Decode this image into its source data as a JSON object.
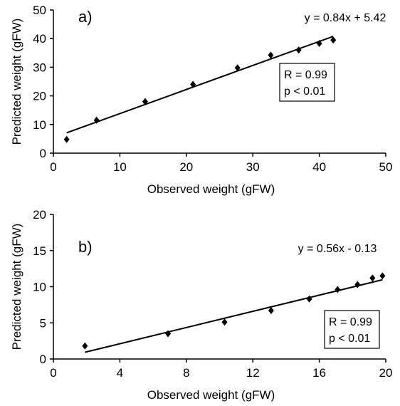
{
  "chart_data": [
    {
      "type": "scatter",
      "panel_label": "a)",
      "xlabel": "Observed weight (gFW)",
      "ylabel": "Predicted weight (gFW)",
      "xlim": [
        0,
        50
      ],
      "ylim": [
        0,
        50
      ],
      "xticks": [
        0,
        10,
        20,
        30,
        40,
        50
      ],
      "yticks": [
        0,
        10,
        20,
        30,
        40,
        50
      ],
      "x_tick_labels": [
        "0",
        "10",
        "20",
        "30",
        "40",
        "50"
      ],
      "y_tick_labels": [
        "0",
        "10",
        "20",
        "30",
        "40",
        "50"
      ],
      "grid": false,
      "points": [
        {
          "x": 2.0,
          "y": 4.8
        },
        {
          "x": 6.5,
          "y": 11.5
        },
        {
          "x": 13.8,
          "y": 18.0
        },
        {
          "x": 21.0,
          "y": 24.0
        },
        {
          "x": 27.7,
          "y": 29.8
        },
        {
          "x": 32.7,
          "y": 34.2
        },
        {
          "x": 36.9,
          "y": 36.0
        },
        {
          "x": 40.0,
          "y": 38.3
        },
        {
          "x": 42.1,
          "y": 39.5
        }
      ],
      "trendline": {
        "slope": 0.84,
        "intercept": 5.42,
        "x_range": [
          2.0,
          42.1
        ]
      },
      "equation": "y = 0.84x + 5.42",
      "stats": [
        "R = 0.99",
        "p <  0.01"
      ],
      "marker": "diamond",
      "color": "#000000"
    },
    {
      "type": "scatter",
      "panel_label": "b)",
      "xlabel": "Observed weight (gFW)",
      "ylabel": "Predicted weight (gFW)",
      "xlim": [
        0,
        20
      ],
      "ylim": [
        0,
        20
      ],
      "xticks": [
        0,
        4,
        8,
        12,
        16,
        20
      ],
      "yticks": [
        0,
        5,
        10,
        15,
        20
      ],
      "x_tick_labels": [
        "0",
        "4",
        "8",
        "12",
        "16",
        "20"
      ],
      "y_tick_labels": [
        "0",
        "5",
        "10",
        "15",
        "20"
      ],
      "grid": false,
      "points": [
        {
          "x": 1.9,
          "y": 1.8
        },
        {
          "x": 6.9,
          "y": 3.5
        },
        {
          "x": 10.3,
          "y": 5.1
        },
        {
          "x": 13.1,
          "y": 6.7
        },
        {
          "x": 15.4,
          "y": 8.3
        },
        {
          "x": 17.1,
          "y": 9.6
        },
        {
          "x": 18.3,
          "y": 10.3
        },
        {
          "x": 19.2,
          "y": 11.2
        },
        {
          "x": 19.8,
          "y": 11.5
        }
      ],
      "trendline": {
        "slope": 0.56,
        "intercept": -0.13,
        "x_range": [
          1.9,
          19.8
        ]
      },
      "equation": "y = 0.56x - 0.13",
      "stats": [
        "R = 0.99",
        "p <  0.01"
      ],
      "marker": "diamond",
      "color": "#000000"
    }
  ]
}
